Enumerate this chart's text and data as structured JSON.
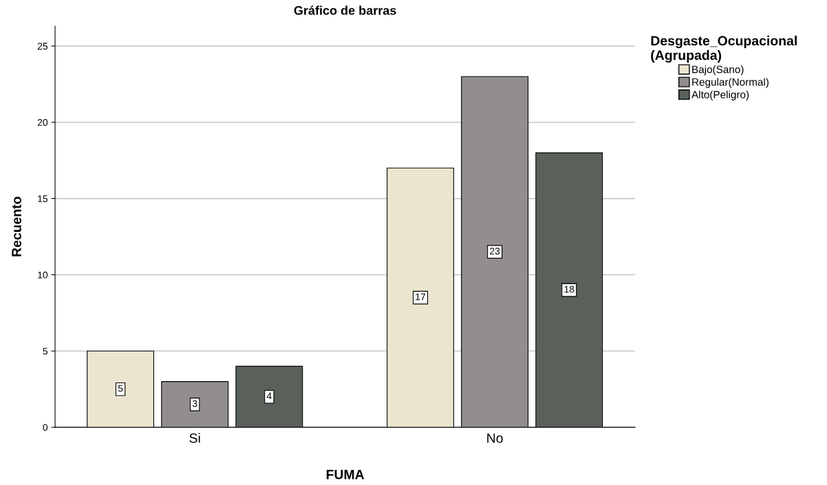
{
  "chart_data": {
    "type": "bar",
    "title": "Gráfico de barras",
    "xlabel": "FUMA",
    "ylabel": "Recuento",
    "categories": [
      "Si",
      "No"
    ],
    "series": [
      {
        "name": "Bajo(Sano)",
        "color": "#ebe5d0",
        "values": [
          5,
          17
        ]
      },
      {
        "name": "Regular(Normal)",
        "color": "#928e8d",
        "values": [
          3,
          23
        ]
      },
      {
        "name": "Alto(Peligro)",
        "color": "#5a615b",
        "values": [
          4,
          18
        ]
      }
    ],
    "legend_title": "Desgaste_Ocupacional\n(Agrupada)",
    "legend": "right",
    "ylim": [
      0,
      26.3
    ],
    "yticks": [
      0,
      5,
      10,
      15,
      20,
      25
    ],
    "grid": "y",
    "data_labels": true
  }
}
